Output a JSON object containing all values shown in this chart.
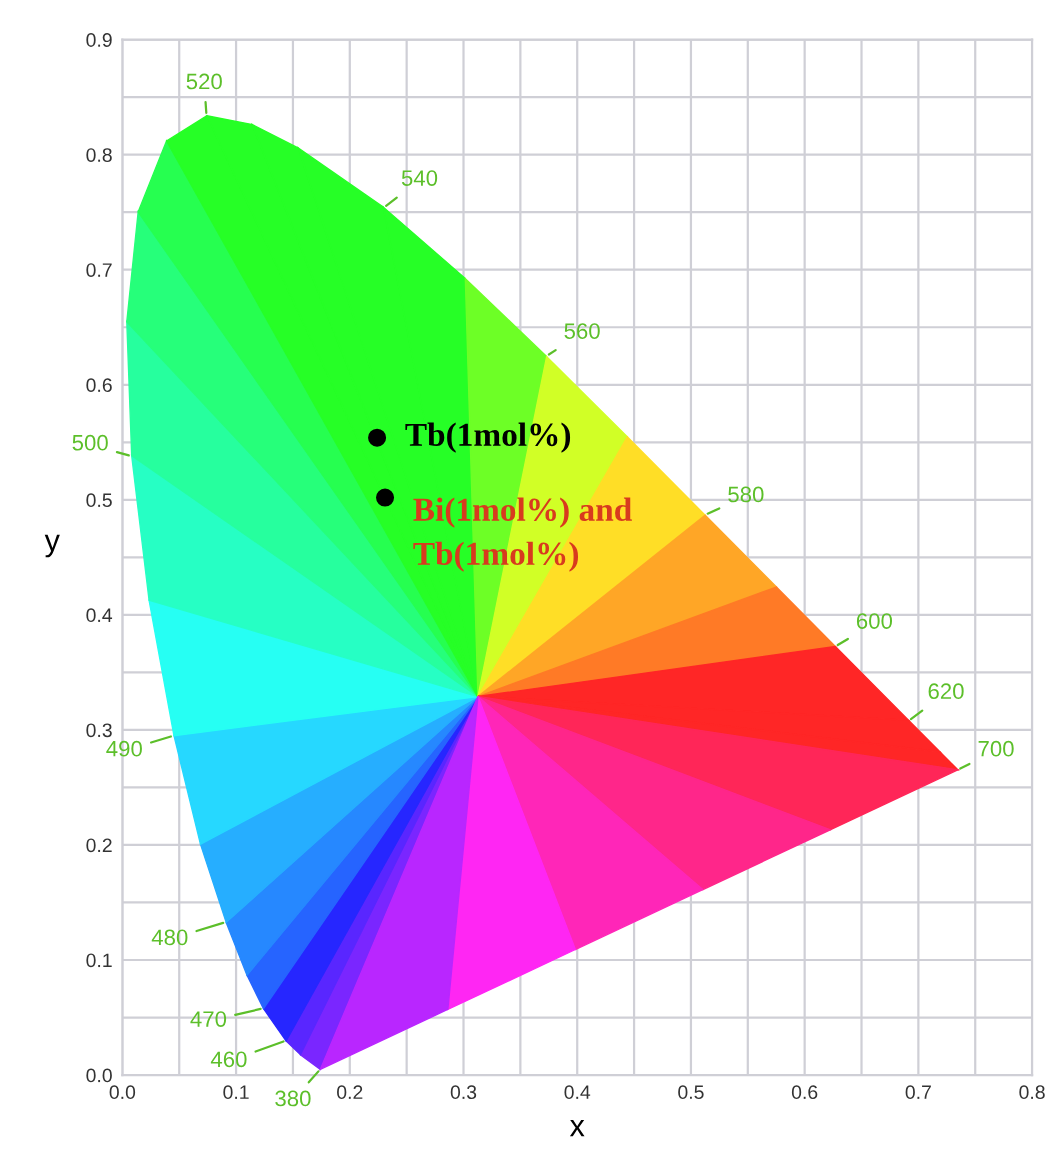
{
  "chart_data": {
    "type": "scatter",
    "xlabel": "x",
    "ylabel": "y",
    "xlim": [
      0,
      0.8
    ],
    "ylim": [
      0,
      0.9
    ],
    "xticks": [
      {
        "value": 0,
        "label": "0.0"
      },
      {
        "value": 0.05,
        "label": null
      },
      0.1,
      {
        "value": 0.15,
        "label": null
      },
      0.2,
      {
        "value": 0.25,
        "label": null
      },
      0.3,
      {
        "value": 0.35,
        "label": null
      },
      0.4,
      {
        "value": 0.45,
        "label": null
      },
      0.5,
      {
        "value": 0.55,
        "label": null
      },
      0.6,
      {
        "value": 0.65,
        "label": null
      },
      0.7,
      {
        "value": 0.75,
        "label": null
      },
      0.8
    ],
    "yticks": [
      {
        "value": 0,
        "label": "0.0"
      },
      {
        "value": 0.05,
        "label": null
      },
      0.1,
      {
        "value": 0.15,
        "label": null
      },
      0.2,
      {
        "value": 0.25,
        "label": null
      },
      0.3,
      {
        "value": 0.35,
        "label": null
      },
      0.4,
      {
        "value": 0.45,
        "label": null
      },
      0.5,
      {
        "value": 0.55,
        "label": null
      },
      0.6,
      {
        "value": 0.65,
        "label": null
      },
      0.7,
      {
        "value": 0.75,
        "label": null
      },
      0.8,
      {
        "value": 0.85,
        "label": null
      },
      0.9
    ],
    "grid": true,
    "marker": "circle",
    "series": [
      {
        "name": "Tb(1mol%)",
        "color": "#000000",
        "x": [
          0.224
        ],
        "values": [
          0.554
        ]
      },
      {
        "name": "Bi(1mol%) and\nTb(1mol%)",
        "color": "#000000",
        "x": [
          0.231
        ],
        "values": [
          0.502
        ]
      }
    ],
    "annotations": [
      "380",
      "460",
      "470",
      "480",
      "490",
      "500",
      "520",
      "540",
      "560",
      "580",
      "600",
      "620",
      "700"
    ]
  }
}
